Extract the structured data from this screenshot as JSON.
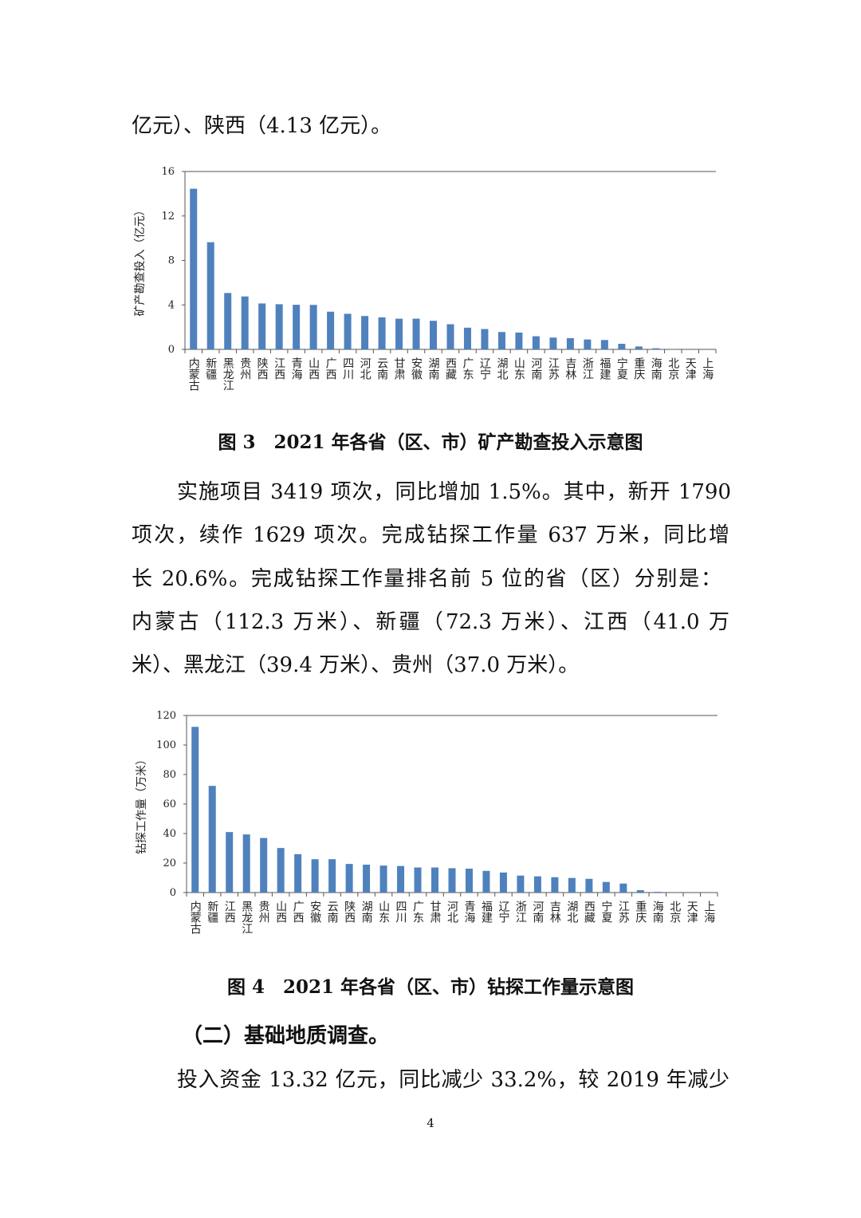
{
  "text": {
    "line_top": "亿元）、陕西（4.13 亿元）。",
    "figure3_caption": "图 3　2021 年各省（区、市）矿产勘查投入示意图",
    "para_lines": [
      "实施项目 3419 项次，同比增加 1.5%。其中，新开 1790",
      "项次，续作 1629 项次。完成钻探工作量 637 万米，同比增",
      "长 20.6%。完成钻探工作量排名前 5 位的省（区）分别是：",
      "内蒙古（112.3 万米）、新疆（72.3 万米）、江西（41.0 万",
      "米）、黑龙江（39.4 万米）、贵州（37.0 万米）。"
    ],
    "figure4_caption": "图 4　2021 年各省（区、市）钻探工作量示意图",
    "section_heading": "（二）基础地质调查。",
    "last_line": "投入资金 13.32 亿元，同比减少 33.2%，较 2019 年减少",
    "page_number": "4"
  },
  "chart_data": [
    {
      "type": "bar",
      "ylabel": "矿产勘查投入（亿元）",
      "ylim": [
        0,
        16
      ],
      "yticks": [
        0,
        4,
        8,
        12,
        16
      ],
      "color": "#4f81bd",
      "categories": [
        "内蒙古",
        "新疆",
        "黑龙江",
        "贵州",
        "陕西",
        "江西",
        "青海",
        "山西",
        "广西",
        "四川",
        "河北",
        "云南",
        "甘肃",
        "安徽",
        "湖南",
        "西藏",
        "广东",
        "辽宁",
        "湖北",
        "山东",
        "河南",
        "江苏",
        "吉林",
        "浙江",
        "福建",
        "宁夏",
        "重庆",
        "海南",
        "北京",
        "天津",
        "上海"
      ],
      "values": [
        14.45,
        9.64,
        5.07,
        4.76,
        4.13,
        4.06,
        4.01,
        4.0,
        3.39,
        3.2,
        3.0,
        2.88,
        2.76,
        2.76,
        2.57,
        2.26,
        1.95,
        1.83,
        1.56,
        1.51,
        1.18,
        1.06,
        1.01,
        0.89,
        0.84,
        0.5,
        0.26,
        0.1,
        0.02,
        0.01,
        0.01
      ]
    },
    {
      "type": "bar",
      "ylabel": "钻探工作量（万米）",
      "ylim": [
        0,
        120
      ],
      "yticks": [
        0,
        20,
        40,
        60,
        80,
        100,
        120
      ],
      "color": "#4f81bd",
      "categories": [
        "内蒙古",
        "新疆",
        "江西",
        "黑龙江",
        "贵州",
        "山西",
        "广西",
        "安徽",
        "云南",
        "陕西",
        "湖南",
        "山东",
        "四川",
        "广东",
        "甘肃",
        "河北",
        "青海",
        "福建",
        "辽宁",
        "浙江",
        "河南",
        "吉林",
        "湖北",
        "西藏",
        "宁夏",
        "江苏",
        "重庆",
        "海南",
        "北京",
        "天津",
        "上海"
      ],
      "values": [
        112.3,
        72.3,
        41.0,
        39.4,
        37.0,
        30.2,
        26.0,
        22.6,
        22.6,
        19.4,
        18.9,
        18.3,
        18.0,
        17.0,
        17.0,
        16.5,
        16.2,
        14.7,
        13.6,
        11.5,
        11.0,
        10.4,
        9.9,
        9.3,
        7.2,
        6.1,
        1.6,
        0.5,
        0.1,
        0.05,
        0.02
      ]
    }
  ]
}
